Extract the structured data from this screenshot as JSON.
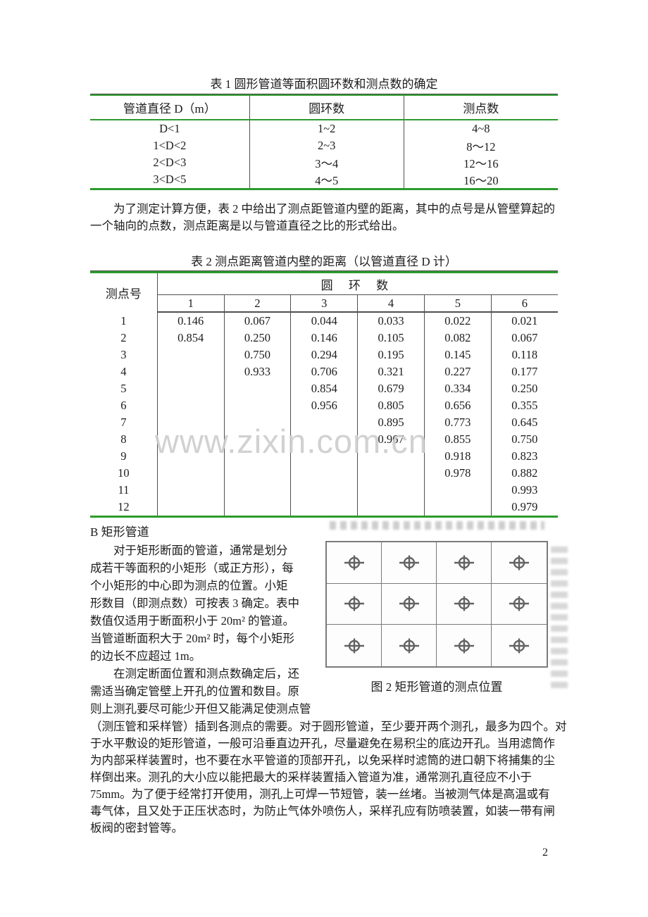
{
  "page_number": "2",
  "watermark": {
    "text": "www.zixin.com.cn",
    "color": "#cdcdcd"
  },
  "colors": {
    "table_border_green": "#2d9b2d",
    "rule_dark_gray": "#4f4f4f"
  },
  "table1": {
    "title": "表 1 圆形管道等面积圆环数和测点数的确定",
    "columns": [
      "管道直径 D（m）",
      "圆环数",
      "测点数"
    ],
    "rows": [
      [
        "D<1",
        "1~2",
        "4~8"
      ],
      [
        "1<D<2",
        "2~3",
        "8～12"
      ],
      [
        "2<D<3",
        "3～4",
        "12～16"
      ],
      [
        "3<D<5",
        "4～5",
        "16～20"
      ]
    ]
  },
  "intro": {
    "lines": [
      "　　为了测定计算方便，表 2 中给出了测点距管道内壁的距离，其中的点号是从管壁算起的",
      "一个轴向的点数，测点距离是以与管道直径之比的形式给出。"
    ]
  },
  "table2": {
    "title": "表 2 测点距离管道内壁的距离（以管道直径 D 计）",
    "corner_header": "测点号",
    "group_header": "圆 环 数",
    "sub_headers": [
      "1",
      "2",
      "3",
      "4",
      "5",
      "6"
    ],
    "rows": [
      {
        "point": "1",
        "values": [
          "0.146",
          "0.067",
          "0.044",
          "0.033",
          "0.022",
          "0.021"
        ]
      },
      {
        "point": "2",
        "values": [
          "0.854",
          "0.250",
          "0.146",
          "0.105",
          "0.082",
          "0.067"
        ]
      },
      {
        "point": "3",
        "values": [
          "",
          "0.750",
          "0.294",
          "0.195",
          "0.145",
          "0.118"
        ]
      },
      {
        "point": "4",
        "values": [
          "",
          "0.933",
          "0.706",
          "0.321",
          "0.227",
          "0.177"
        ]
      },
      {
        "point": "5",
        "values": [
          "",
          "",
          "0.854",
          "0.679",
          "0.334",
          "0.250"
        ]
      },
      {
        "point": "6",
        "values": [
          "",
          "",
          "0.956",
          "0.805",
          "0.656",
          "0.355"
        ]
      },
      {
        "point": "7",
        "values": [
          "",
          "",
          "",
          "0.895",
          "0.773",
          "0.645"
        ]
      },
      {
        "point": "8",
        "values": [
          "",
          "",
          "",
          "0.967",
          "0.855",
          "0.750"
        ]
      },
      {
        "point": "9",
        "values": [
          "",
          "",
          "",
          "",
          "0.918",
          "0.823"
        ]
      },
      {
        "point": "10",
        "values": [
          "",
          "",
          "",
          "",
          "0.978",
          "0.882"
        ]
      },
      {
        "point": "11",
        "values": [
          "",
          "",
          "",
          "",
          "",
          "0.993"
        ]
      },
      {
        "point": "12",
        "values": [
          "",
          "",
          "",
          "",
          "",
          "0.979"
        ]
      }
    ]
  },
  "section_b": {
    "heading": "B 矩形管道",
    "left_lines": [
      "　　对于矩形断面的管道，通常是划分",
      "成若干等面积的小矩形（或正方形），每",
      "个小矩形的中心即为测点的位置。小矩",
      "形数目（即测点数）可按表 3 确定。表中",
      "数值仅适用于断面积小于 20m² 的管道。",
      "当管道断面积大于 20m² 时，每个小矩形",
      "的边长不应超过 1m。",
      "　　在测定断面位置和测点数确定后，还",
      "需适当确定管壁上开孔的位置和数目。原",
      "则上测孔要尽可能少开但又能满足使测点管"
    ],
    "full_lines": [
      "（测压管和采样管）插到各测点的需要。对于圆形管道，至少要开两个测孔，最多为四个。对",
      "于水平敷设的矩形管道，一般可沿垂直边开孔，尽量避免在易积尘的底边开孔。当用滤筒作",
      "为内部采样装置时，也不要在水平管道的顶部开孔，以免采样时滤筒的进口朝下将捕集的尘",
      "样倒出来。测孔的大小应以能把最大的采样装置插入管道为准，通常测孔直径应不小于",
      "75mm。为了便于经常打开使用，测孔上可焊一节短管，装一丝堵。当被测气体是高温或有",
      "毒气体，且又处于正压状态时，为防止气体外喷伤人，采样孔应有防喷装置，如装一带有闸",
      "板阀的密封管等。"
    ]
  },
  "figure": {
    "caption": "图 2 矩形管道的测点位置",
    "grid": {
      "rows": 3,
      "cols": 4
    },
    "marker_icon": "crosshair-target-icon"
  }
}
